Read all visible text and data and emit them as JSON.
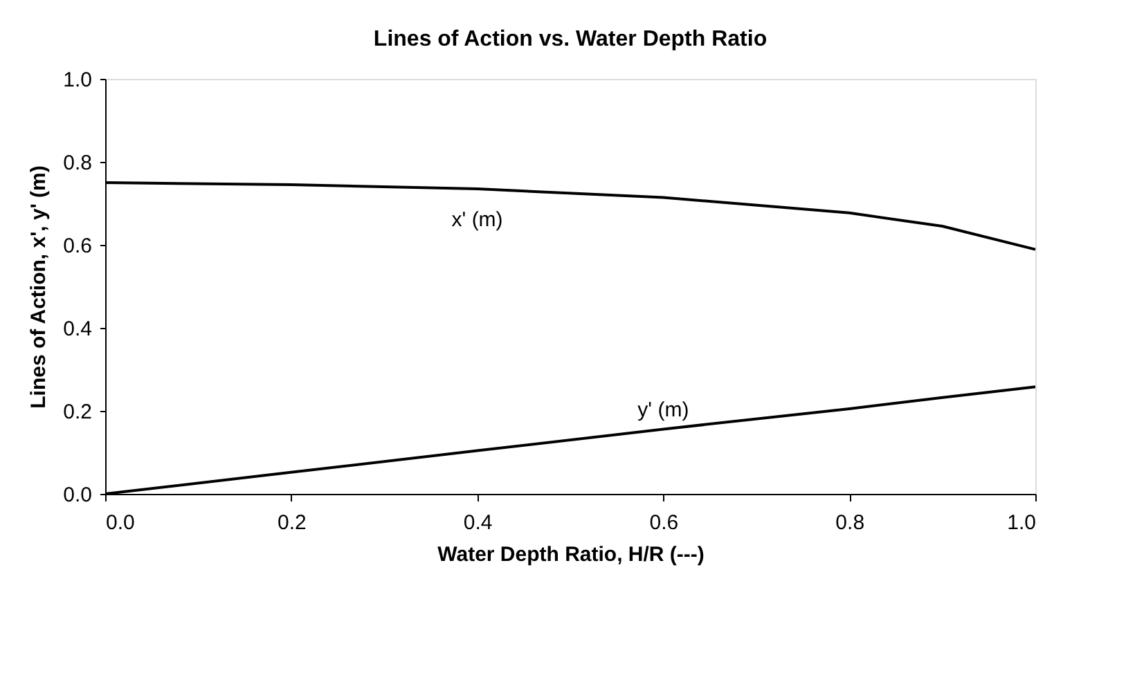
{
  "chart_data": {
    "type": "line",
    "title": "Lines of Action vs. Water Depth Ratio",
    "xlabel": "Water Depth Ratio, H/R (---)",
    "ylabel": "Lines of Action, x', y' (m)",
    "x": [
      0,
      0.2,
      0.4,
      0.6,
      0.8,
      0.9,
      1.0
    ],
    "series": [
      {
        "name": "x' (m)",
        "color": "#000000",
        "values": [
          0.75,
          0.745,
          0.735,
          0.714,
          0.677,
          0.645,
          0.589
        ]
      },
      {
        "name": "y' (m)",
        "color": "#000000",
        "values": [
          0,
          0.052,
          0.104,
          0.156,
          0.205,
          0.232,
          0.258
        ]
      }
    ],
    "xlim": [
      0,
      1
    ],
    "ylim": [
      0,
      1
    ],
    "xticks": [
      {
        "value": 0,
        "label": "0.0"
      },
      0.2,
      0.4,
      0.6,
      0.8,
      {
        "value": 1,
        "label": "1.0"
      }
    ],
    "yticks": [
      {
        "value": 0,
        "label": "0.0"
      },
      0.2,
      0.4,
      0.6,
      0.8,
      {
        "value": 1,
        "label": "1.0"
      }
    ],
    "grid": false,
    "legend": false,
    "marker": "none",
    "line_style": "solid"
  }
}
